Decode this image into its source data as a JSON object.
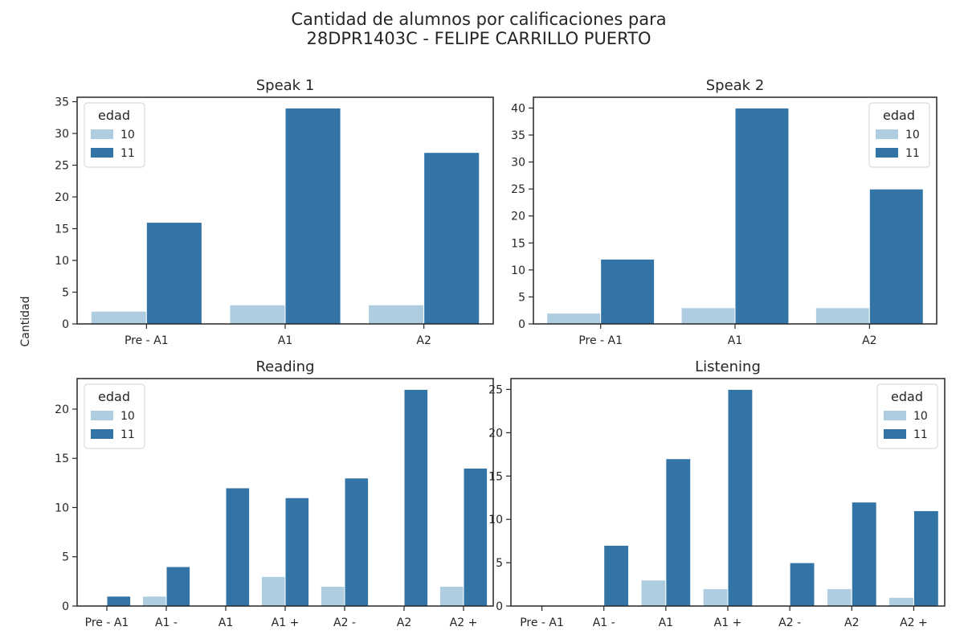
{
  "figure": {
    "title_line1": "Cantidad de alumnos por calificaciones para",
    "title_line2": "28DPR1403C - FELIPE CARRILLO PUERTO",
    "ylabel": "Cantidad"
  },
  "colors": {
    "series_10": "#aecde1",
    "series_11": "#3274a6",
    "axes": "#262626"
  },
  "chart_data": [
    {
      "type": "bar",
      "title": "Speak 1",
      "categories": [
        "Pre - A1",
        "A1",
        "A2"
      ],
      "series": [
        {
          "name": "10",
          "values": [
            2,
            3,
            3
          ]
        },
        {
          "name": "11",
          "values": [
            16,
            34,
            27
          ]
        }
      ],
      "ylim": [
        0,
        35.7
      ],
      "yticks": [
        0,
        5,
        10,
        15,
        20,
        25,
        30,
        35
      ],
      "legend": {
        "title": "edad",
        "placement": "top-left"
      }
    },
    {
      "type": "bar",
      "title": "Speak 2",
      "categories": [
        "Pre - A1",
        "A1",
        "A2"
      ],
      "series": [
        {
          "name": "10",
          "values": [
            2,
            3,
            3
          ]
        },
        {
          "name": "11",
          "values": [
            12,
            40,
            25
          ]
        }
      ],
      "ylim": [
        0,
        42
      ],
      "yticks": [
        0,
        5,
        10,
        15,
        20,
        25,
        30,
        35,
        40
      ],
      "legend": {
        "title": "edad",
        "placement": "top-right"
      }
    },
    {
      "type": "bar",
      "title": "Reading",
      "categories": [
        "Pre - A1",
        "A1 -",
        "A1",
        "A1 +",
        "A2 -",
        "A2",
        "A2 +"
      ],
      "series": [
        {
          "name": "10",
          "values": [
            0,
            1,
            0,
            3,
            2,
            0,
            2
          ]
        },
        {
          "name": "11",
          "values": [
            1,
            4,
            12,
            11,
            13,
            22,
            14
          ]
        }
      ],
      "ylim": [
        0,
        23.1
      ],
      "yticks": [
        0,
        5,
        10,
        15,
        20
      ],
      "legend": {
        "title": "edad",
        "placement": "top-left"
      }
    },
    {
      "type": "bar",
      "title": "Listening",
      "categories": [
        "Pre - A1",
        "A1 -",
        "A1",
        "A1 +",
        "A2 -",
        "A2",
        "A2 +"
      ],
      "series": [
        {
          "name": "10",
          "values": [
            0,
            0,
            3,
            2,
            0,
            2,
            1
          ]
        },
        {
          "name": "11",
          "values": [
            0,
            7,
            17,
            25,
            5,
            12,
            11
          ]
        }
      ],
      "ylim": [
        0,
        26.25
      ],
      "yticks": [
        0,
        5,
        10,
        15,
        20,
        25
      ],
      "legend": {
        "title": "edad",
        "placement": "top-right"
      }
    }
  ]
}
